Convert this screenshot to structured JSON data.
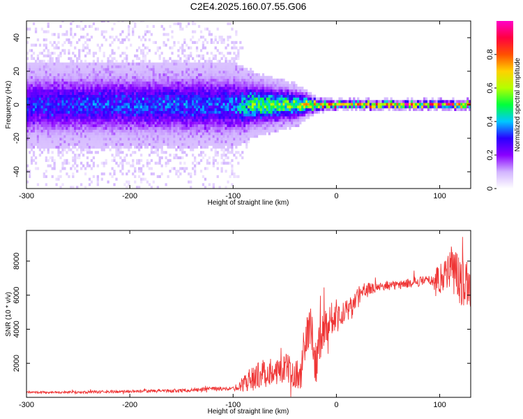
{
  "title": "C2E4.2025.160.07.55.G06",
  "chart_data": [
    {
      "type": "heatmap",
      "name": "spectrogram",
      "xlabel": "Height of straight line (km)",
      "ylabel": "Frequency (Hz)",
      "xlim": [
        -300,
        130
      ],
      "ylim": [
        -50,
        50
      ],
      "xticks": [
        -300,
        -200,
        -100,
        0,
        100
      ],
      "yticks": [
        -40,
        -20,
        0,
        20,
        40
      ],
      "colorbar": {
        "label": "Normalized spectral amplitude",
        "range": [
          0,
          1
        ],
        "ticks": [
          0.0,
          0.2,
          0.4,
          0.6,
          0.8
        ],
        "colormap": [
          "#ffffff",
          "#d2b4ff",
          "#8a00ff",
          "#2a00ff",
          "#00c8ff",
          "#00ff3c",
          "#b4ff00",
          "#ffd200",
          "#ff5000",
          "#ff0040",
          "#ff00c8"
        ]
      },
      "band_profile": [
        {
          "height_km": -300,
          "scatter_halfwidth_hz": 50,
          "core_halfwidth_hz": 8,
          "peak_amplitude": 0.3
        },
        {
          "height_km": -100,
          "scatter_halfwidth_hz": 50,
          "core_halfwidth_hz": 8,
          "peak_amplitude": 0.33
        },
        {
          "height_km": -80,
          "scatter_halfwidth_hz": 15,
          "core_halfwidth_hz": 6,
          "peak_amplitude": 0.55
        },
        {
          "height_km": -40,
          "scatter_halfwidth_hz": 10,
          "core_halfwidth_hz": 4,
          "peak_amplitude": 0.6
        },
        {
          "height_km": -20,
          "scatter_halfwidth_hz": 4,
          "core_halfwidth_hz": 1.5,
          "peak_amplitude": 0.8
        },
        {
          "height_km": 0,
          "scatter_halfwidth_hz": 3,
          "core_halfwidth_hz": 1,
          "peak_amplitude": 0.9
        },
        {
          "height_km": 130,
          "scatter_halfwidth_hz": 3,
          "core_halfwidth_hz": 1,
          "peak_amplitude": 0.95
        }
      ]
    },
    {
      "type": "line",
      "name": "snr",
      "xlabel": "Height of straight line (km)",
      "ylabel": "SNR (10 * v/v)",
      "xlim": [
        -300,
        130
      ],
      "ylim": [
        0,
        9800
      ],
      "xticks": [
        -300,
        -200,
        -100,
        0,
        100
      ],
      "yticks": [
        2000,
        4000,
        6000,
        8000
      ],
      "color": "#ef3535",
      "series": [
        {
          "name": "SNR",
          "x": [
            -300,
            -250,
            -200,
            -150,
            -120,
            -100,
            -90,
            -80,
            -70,
            -60,
            -50,
            -40,
            -35,
            -30,
            -25,
            -20,
            -15,
            -10,
            -5,
            0,
            5,
            10,
            15,
            20,
            30,
            40,
            60,
            80,
            95,
            100,
            105,
            110,
            115,
            120,
            130
          ],
          "y": [
            300,
            300,
            350,
            400,
            500,
            500,
            800,
            1200,
            1400,
            1600,
            1700,
            1500,
            1100,
            3200,
            4400,
            2000,
            3800,
            4200,
            4700,
            4700,
            4900,
            5000,
            5200,
            5800,
            6300,
            6500,
            6600,
            6800,
            6900,
            7000,
            7300,
            7600,
            7400,
            6800,
            6500
          ]
        }
      ],
      "noise_amplitude": [
        {
          "x": -300,
          "amp": 60
        },
        {
          "x": -100,
          "amp": 120
        },
        {
          "x": -80,
          "amp": 800
        },
        {
          "x": -40,
          "amp": 900
        },
        {
          "x": -20,
          "amp": 1400
        },
        {
          "x": 0,
          "amp": 900
        },
        {
          "x": 20,
          "amp": 600
        },
        {
          "x": 40,
          "amp": 250
        },
        {
          "x": 90,
          "amp": 300
        },
        {
          "x": 100,
          "amp": 900
        },
        {
          "x": 115,
          "amp": 1500
        },
        {
          "x": 130,
          "amp": 1200
        }
      ]
    }
  ]
}
